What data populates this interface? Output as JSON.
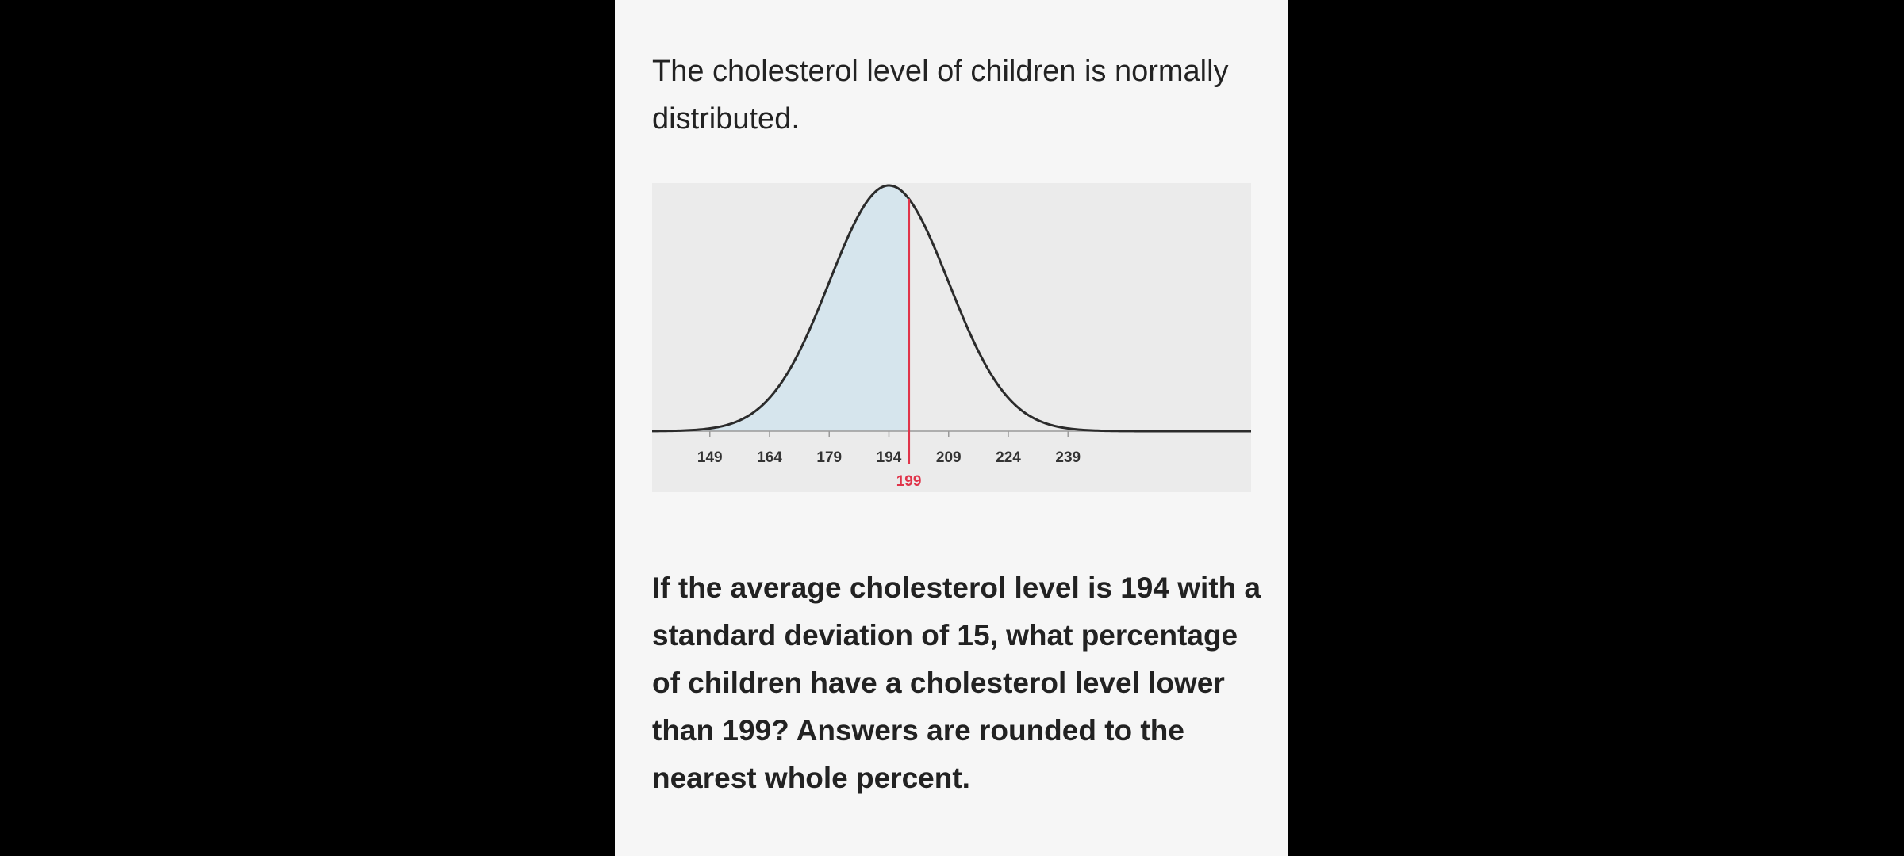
{
  "intro_text": "The cholesterol level of children is normally distributed.",
  "question_text": "If the average cholesterol level is 194 with a standard deviation of 15, what percentage of children have a cholesterol level lower than 199? Answers are rounded to the nearest whole percent.",
  "colors": {
    "page": "#000000",
    "panel": "#f6f6f6",
    "chart_bg": "#ebebeb",
    "shade": "#d6e5ed",
    "curve": "#2b2b2b",
    "marker": "#e0344a",
    "axis": "#9a9a9a"
  },
  "chart_data": {
    "type": "area",
    "distribution": "normal",
    "mean": 194,
    "sd": 15,
    "xlim": [
      134.5,
      285
    ],
    "ticks": [
      149,
      164,
      179,
      194,
      209,
      224,
      239
    ],
    "tick_labels": [
      "149",
      "164",
      "179",
      "194",
      "209",
      "224",
      "239"
    ],
    "shaded_region": "x < 199",
    "marker": {
      "value": 199,
      "label": "199"
    },
    "title": "",
    "xlabel": "",
    "ylabel": ""
  }
}
